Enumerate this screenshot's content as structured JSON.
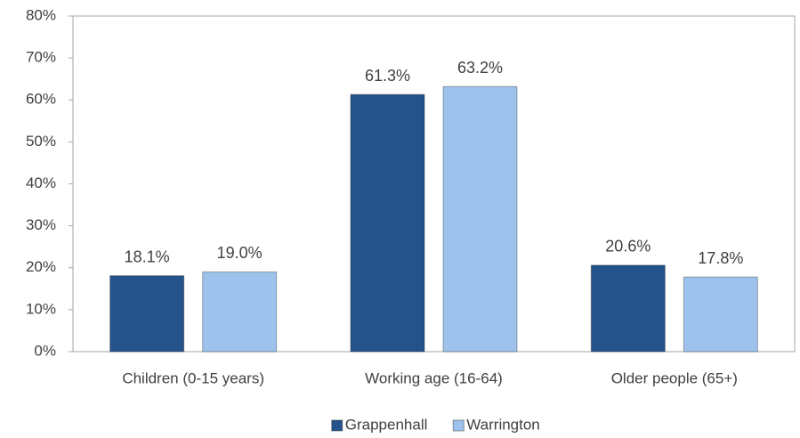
{
  "chart_data": {
    "type": "bar",
    "categories": [
      "Children (0-15 years)",
      "Working age (16-64)",
      "Older people (65+)"
    ],
    "series": [
      {
        "name": "Grappenhall",
        "color": "#24528a",
        "values": [
          18.1,
          61.3,
          20.6
        ],
        "value_labels": [
          "18.1%",
          "61.3%",
          "20.6%"
        ]
      },
      {
        "name": "Warrington",
        "color": "#9dc3ec",
        "values": [
          19.0,
          63.2,
          17.8
        ],
        "value_labels": [
          "19.0%",
          "63.2%",
          "17.8%"
        ]
      }
    ],
    "ylim": [
      0,
      80
    ],
    "yticks": [
      {
        "value": 0,
        "label": "0%"
      },
      {
        "value": 10,
        "label": "10%"
      },
      {
        "value": 20,
        "label": "20%"
      },
      {
        "value": 30,
        "label": "30%"
      },
      {
        "value": 40,
        "label": "40%"
      },
      {
        "value": 50,
        "label": "50%"
      },
      {
        "value": 60,
        "label": "60%"
      },
      {
        "value": 70,
        "label": "70%"
      },
      {
        "value": 80,
        "label": "80%"
      }
    ],
    "legend": "bottom"
  }
}
